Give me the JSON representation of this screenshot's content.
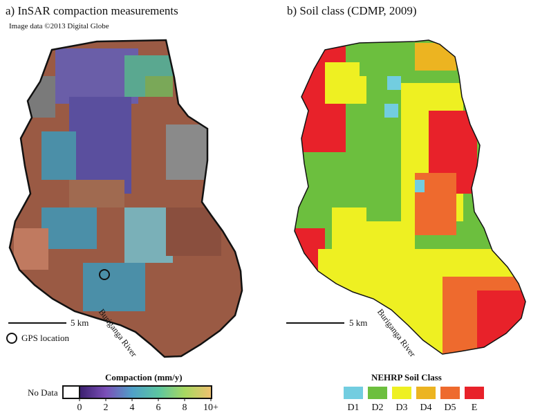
{
  "panel_a": {
    "title": "a) InSAR compaction measurements",
    "credit": "Image data ©2013 Digital Globe",
    "scale_label": "5 km",
    "river_label": "Buriganga River",
    "gps_label": "GPS location"
  },
  "panel_b": {
    "title": "b)  Soil class (CDMP, 2009)",
    "scale_label": "5 km",
    "river_label": "Buriganga River"
  },
  "compaction_legend": {
    "title": "Compaction (mm/y)",
    "no_data_label": "No Data",
    "ticks": [
      "0",
      "2",
      "4",
      "6",
      "8",
      "10+"
    ],
    "colors": [
      "#3a1f6e",
      "#7b4fb8",
      "#4fa0c8",
      "#5cc6a0",
      "#a8d860",
      "#f0c070"
    ]
  },
  "soil_legend": {
    "title": "NEHRP Soil Class",
    "classes": [
      {
        "label": "D1",
        "color": "#72cde0"
      },
      {
        "label": "D2",
        "color": "#6cbf3e"
      },
      {
        "label": "D3",
        "color": "#eef022"
      },
      {
        "label": "D4",
        "color": "#ecb421"
      },
      {
        "label": "D5",
        "color": "#ee6a2e"
      },
      {
        "label": "E",
        "color": "#e8222a"
      }
    ]
  }
}
